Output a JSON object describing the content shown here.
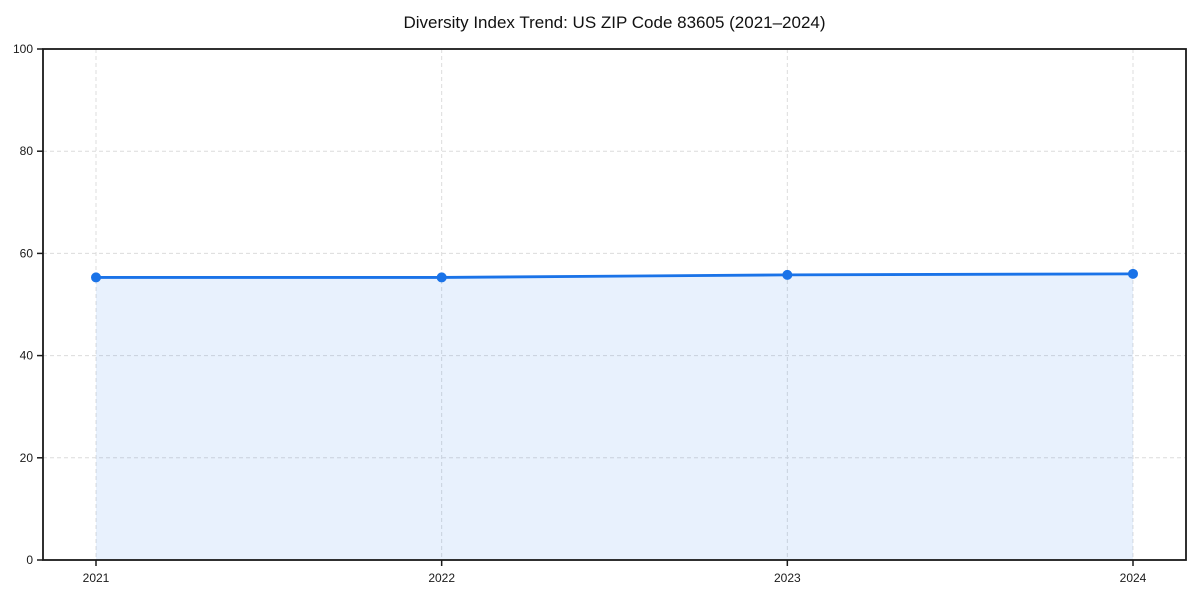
{
  "chart_data": {
    "type": "line",
    "title": "Diversity Index Trend: US ZIP Code 83605 (2021–2024)",
    "x": [
      "2021",
      "2022",
      "2023",
      "2024"
    ],
    "series": [
      {
        "name": "Diversity Index",
        "values": [
          55.3,
          55.3,
          55.8,
          56.0
        ]
      }
    ],
    "xlabel": "",
    "ylabel": "",
    "ylim": [
      0,
      100
    ],
    "yticks": [
      0,
      20,
      40,
      60,
      80,
      100
    ],
    "grid": true,
    "grid_style": "dashed",
    "legend": false,
    "line_color": "#1a73e8",
    "marker_color": "#1a73e8",
    "area_fill_color": "rgba(26,115,232,0.10)",
    "grid_color": "#dcdcdc",
    "axis_color": "#1a1a1a",
    "tick_label_color": "#1a1a1a"
  }
}
